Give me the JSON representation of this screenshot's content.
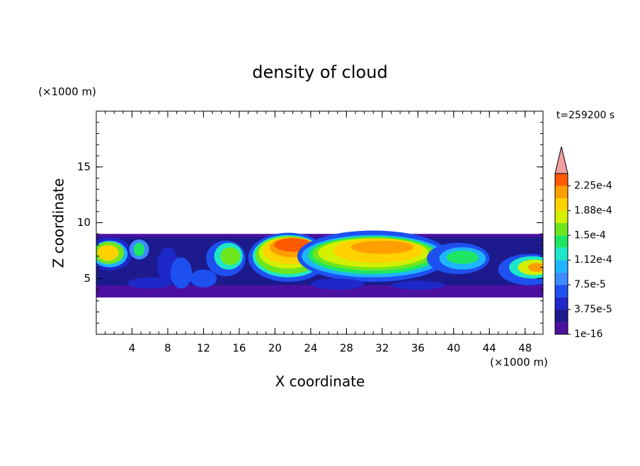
{
  "chart_data": {
    "type": "contour",
    "title": "density of cloud",
    "x_label": "X coordinate",
    "y_label": "Z coordinate",
    "x_unit": "(×1000 m)",
    "y_unit": "(×1000 m)",
    "annotation": "t=259200 s",
    "xlim": [
      0,
      50
    ],
    "xticks": [
      4,
      8,
      12,
      16,
      20,
      24,
      28,
      32,
      36,
      40,
      44,
      48
    ],
    "ylim": [
      0,
      20
    ],
    "yticks": [
      5,
      10,
      15
    ],
    "colorbar": {
      "clim": [
        1e-16,
        0.00024375
      ],
      "colors": [
        "#4c10a0",
        "#1c1a8c",
        "#1e28c8",
        "#1e50f0",
        "#3c8cff",
        "#1eb4ff",
        "#1ee6c8",
        "#1ee664",
        "#6ee61e",
        "#d2f000",
        "#ffd200",
        "#ffa000",
        "#ff5a00"
      ],
      "extend_color": "#f0a0a0",
      "ticks": [
        {
          "value": 1e-16,
          "label": "1e-16"
        },
        {
          "value": 3.75e-05,
          "label": "3.75e-5"
        },
        {
          "value": 7.5e-05,
          "label": "7.5e-5"
        },
        {
          "value": 0.0001125,
          "label": "1.12e-4"
        },
        {
          "value": 0.00015,
          "label": "1.5e-4"
        },
        {
          "value": 0.0001875,
          "label": "1.88e-4"
        },
        {
          "value": 0.000225,
          "label": "2.25e-4"
        }
      ]
    }
  }
}
